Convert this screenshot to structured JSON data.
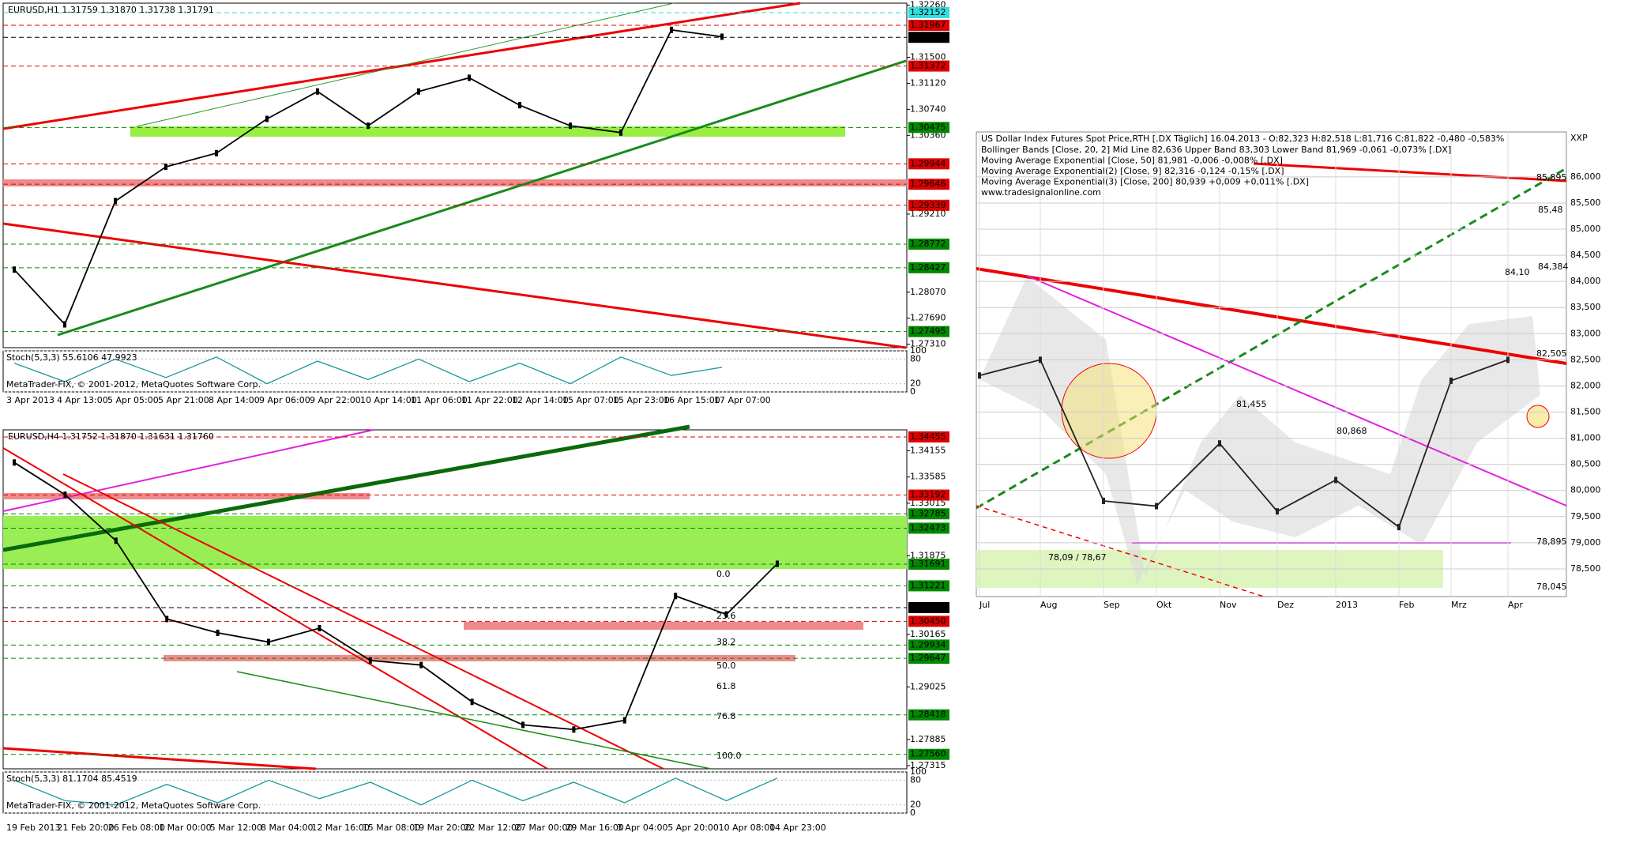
{
  "chart_data": [
    {
      "type": "line",
      "title": "EURUSD,H1  1.31759 1.31870 1.31738 1.31791",
      "color": "#000000",
      "categories": [
        "3 Apr 2013",
        "4 Apr 13:00",
        "5 Apr 05:00",
        "5 Apr 21:00",
        "8 Apr 14:00",
        "9 Apr 06:00",
        "9 Apr 22:00",
        "10 Apr 14:00",
        "11 Apr 06:00",
        "11 Apr 22:00",
        "12 Apr 14:00",
        "15 Apr 07:00",
        "15 Apr 23:00",
        "16 Apr 15:00",
        "17 Apr 07:00"
      ],
      "values": [
        1.284,
        1.276,
        1.294,
        1.299,
        1.301,
        1.306,
        1.31,
        1.305,
        1.31,
        1.312,
        1.308,
        1.305,
        1.304,
        1.319,
        1.318
      ],
      "ylim": [
        1.2726,
        1.3229
      ],
      "yticks": [
        {
          "value": 1.3226,
          "label": "1.32260"
        },
        {
          "value": 1.315,
          "label": "1.31500"
        },
        {
          "value": 1.3112,
          "label": "1.31120"
        },
        {
          "value": 1.3074,
          "label": "1.30740"
        },
        {
          "value": 1.3036,
          "label": "1.30360"
        },
        {
          "value": 1.2921,
          "label": "1.29210"
        },
        {
          "value": 1.2807,
          "label": "1.28070"
        },
        {
          "value": 1.2769,
          "label": "1.27690"
        },
        {
          "value": 1.2731,
          "label": "1.27310"
        }
      ],
      "levels": [
        {
          "value": 1.32152,
          "color": "#33dddd"
        },
        {
          "value": 1.31967,
          "color": "#dd0000"
        },
        {
          "value": 1.31791,
          "color": "#000000"
        },
        {
          "value": 1.31372,
          "color": "#dd0000"
        },
        {
          "value": 1.30475,
          "color": "#008800"
        },
        {
          "value": 1.29944,
          "color": "#dd0000"
        },
        {
          "value": 1.29646,
          "color": "#dd0000"
        },
        {
          "value": 1.29339,
          "color": "#dd0000"
        },
        {
          "value": 1.28772,
          "color": "#008800"
        },
        {
          "value": 1.28427,
          "color": "#008800"
        },
        {
          "value": 1.27495,
          "color": "#008800"
        }
      ],
      "stoch": {
        "label": "Stoch(5,3,3) 55.6106 47.9923",
        "color": "#1a9a9a",
        "values": [
          70,
          25,
          80,
          35,
          85,
          20,
          75,
          30,
          80,
          25,
          70,
          20,
          85,
          40,
          60
        ],
        "ylim": [
          0,
          100
        ],
        "yticks": [
          0,
          20,
          80,
          100
        ]
      },
      "copyright": "MetaTrader-FIX, © 2001-2012, MetaQuotes Software Corp."
    },
    {
      "type": "line",
      "title": "EURUSD,H4  1.31752 1.31870 1.31631 1.31760",
      "color": "#000000",
      "categories": [
        "19 Feb 2013",
        "21 Feb 20:00",
        "26 Feb 08:00",
        "1 Mar 00:00",
        "5 Mar 12:00",
        "8 Mar 04:00",
        "12 Mar 16:00",
        "15 Mar 08:00",
        "19 Mar 20:00",
        "22 Mar 12:00",
        "27 Mar 00:00",
        "29 Mar 16:00",
        "3 Apr 04:00",
        "5 Apr 20:00",
        "10 Apr 08:00",
        "14 Apr 23:00"
      ],
      "values": [
        1.339,
        1.332,
        1.322,
        1.305,
        1.302,
        1.3,
        1.303,
        1.296,
        1.295,
        1.287,
        1.282,
        1.281,
        1.283,
        1.31,
        1.306,
        1.317
      ],
      "ylim": [
        1.27246,
        1.34609
      ],
      "yticks": [
        1.34155,
        1.33585,
        1.33015,
        1.31875,
        1.30165,
        1.29025,
        1.27885,
        1.27315
      ],
      "levels": [
        {
          "value": 1.34455,
          "color": "#dd0000"
        },
        {
          "value": 1.33192,
          "color": "#dd0000"
        },
        {
          "value": 1.32785,
          "color": "#008800"
        },
        {
          "value": 1.32473,
          "color": "#008800"
        },
        {
          "value": 1.31691,
          "color": "#008800"
        },
        {
          "value": 1.31221,
          "color": "#008800"
        },
        {
          "value": 1.30748,
          "color": "#000000"
        },
        {
          "value": 1.3045,
          "label": "1.30450",
          "color": "#dd0000"
        },
        {
          "value": 1.29934,
          "color": "#008800"
        },
        {
          "value": 1.29647,
          "color": "#008800"
        },
        {
          "value": 1.28418,
          "color": "#008800"
        },
        {
          "value": 1.2756,
          "label": "1.27560",
          "color": "#008800"
        }
      ],
      "fibo_labels": [
        "0.0",
        "23.6",
        "38.2",
        "50.0",
        "61.8",
        "76.8",
        "100.0"
      ],
      "stoch": {
        "label": "Stoch(5,3,3) 81.1704 85.4519",
        "color": "#1a9a9a",
        "values": [
          80,
          30,
          20,
          70,
          25,
          80,
          35,
          75,
          20,
          80,
          30,
          75,
          25,
          85,
          30,
          85
        ],
        "ylim": [
          0,
          100
        ],
        "yticks": [
          0,
          20,
          80,
          100
        ]
      },
      "copyright": "MetaTrader-FIX, © 2001-2012, MetaQuotes Software Corp."
    },
    {
      "type": "line",
      "title": "US Dollar Index Futures Spot Price,RTH [.DX Täglich] 16.04.2013 - O:82,323 H:82,518 L:81,716 C:81,822 -0,480 -0,583%",
      "color": "#222222",
      "legend_lines": [
        "Bollinger Bands [Close, 20, 2] Mid Line 82,636 Upper Band 83,303 Lower Band 81,969 -0,061 -0,073% [.DX]",
        "Moving Average Exponential [Close, 50] 81,981 -0,006 -0,008% [.DX]",
        "Moving Average Exponential(2) [Close, 9] 82,316 -0,124 -0,15% [.DX]",
        "Moving Average Exponential(3) [Close, 200] 80,939 +0,009 +0,011% [.DX]",
        "www.tradesignalonline.com"
      ],
      "y_label": "XXP",
      "categories": [
        "Jul",
        "Aug",
        "Sep",
        "Okt",
        "Nov",
        "Dez",
        "2013",
        "Feb",
        "Mrz",
        "Apr"
      ],
      "values": [
        82.2,
        82.5,
        79.8,
        79.7,
        80.9,
        79.6,
        80.2,
        79.3,
        82.1,
        82.5
      ],
      "ylim": [
        77.97,
        86.86
      ],
      "yticks": [
        {
          "value": 86,
          "label": "86,000"
        },
        {
          "value": 85.5,
          "label": "85,500"
        },
        {
          "value": 85,
          "label": "85,000"
        },
        {
          "value": 84.5,
          "label": "84,500"
        },
        {
          "value": 84,
          "label": "84,000"
        },
        {
          "value": 83.5,
          "label": "83,500"
        },
        {
          "value": 83,
          "label": "83,000"
        },
        {
          "value": 82.5,
          "label": "82,500"
        },
        {
          "value": 82,
          "label": "82,000"
        },
        {
          "value": 81.5,
          "label": "81,500"
        },
        {
          "value": 81,
          "label": "81,000"
        },
        {
          "value": 80.5,
          "label": "80,500"
        },
        {
          "value": 80,
          "label": "80,000"
        },
        {
          "value": 79.5,
          "label": "79,500"
        },
        {
          "value": 79,
          "label": "79,000"
        },
        {
          "value": 78.5,
          "label": "78,500"
        }
      ],
      "grid": true,
      "annotations": [
        "85,895",
        "85,48",
        "84,384",
        "84,10",
        "82,505",
        "81,455",
        "80,868",
        "78,09 / 78,67",
        "78,895",
        "78,045"
      ]
    }
  ]
}
